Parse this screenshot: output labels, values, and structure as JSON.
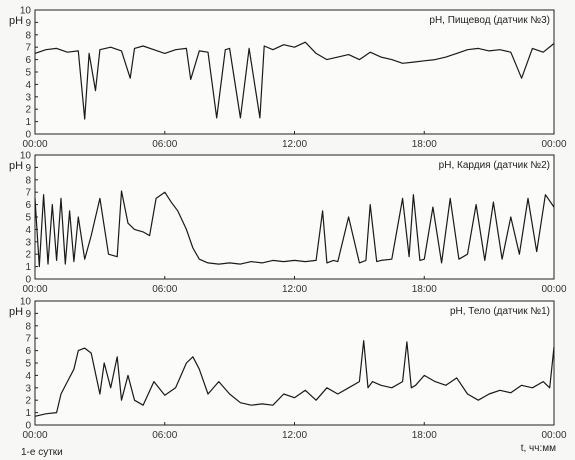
{
  "footer": {
    "day_label": "1-е сутки",
    "axis_label": "t, чч:мм"
  },
  "chart_data": [
    {
      "type": "line",
      "title": "pH, Пищевод (датчик №3)",
      "ylabel": "pH",
      "ylim": [
        0,
        10
      ],
      "yticks": [
        "0",
        "1",
        "2",
        "3",
        "4",
        "5",
        "6",
        "7",
        "8",
        "9",
        "10"
      ],
      "xticks": [
        "00:00",
        "06:00",
        "12:00",
        "18:00",
        "00:00"
      ],
      "xlim_hours": [
        0,
        24
      ],
      "grid": false,
      "series": [
        {
          "x": [
            0,
            0.5,
            1,
            1.5,
            2,
            2.3,
            2.5,
            2.8,
            3,
            3.5,
            4,
            4.4,
            4.6,
            5,
            5.5,
            6,
            6.5,
            7,
            7.2,
            7.6,
            8,
            8.4,
            8.8,
            9,
            9.5,
            9.9,
            10.4,
            10.6,
            11,
            11.5,
            12,
            12.5,
            13,
            13.5,
            14,
            14.5,
            15,
            15.5,
            16,
            16.5,
            17,
            17.5,
            18,
            18.5,
            19,
            19.5,
            20,
            20.5,
            21,
            21.5,
            22,
            22.5,
            23,
            23.5,
            24
          ],
          "y": [
            6.5,
            6.8,
            6.9,
            6.6,
            6.7,
            1.2,
            6.5,
            3.5,
            6.8,
            7.0,
            6.7,
            4.5,
            6.9,
            7.1,
            6.8,
            6.5,
            6.8,
            6.9,
            4.4,
            6.7,
            6.6,
            1.3,
            6.8,
            6.9,
            1.3,
            6.9,
            1.3,
            7.1,
            6.8,
            7.2,
            7.0,
            7.4,
            6.5,
            6.0,
            6.2,
            6.4,
            6.0,
            6.6,
            6.2,
            6.0,
            5.7,
            5.8,
            5.9,
            6.0,
            6.2,
            6.5,
            6.8,
            6.9,
            6.7,
            6.8,
            6.6,
            4.5,
            6.9,
            6.6,
            7.3
          ]
        }
      ]
    },
    {
      "type": "line",
      "title": "pH, Кардия (датчик №2)",
      "ylabel": "pH",
      "ylim": [
        0,
        10
      ],
      "yticks": [
        "0",
        "1",
        "2",
        "3",
        "4",
        "5",
        "6",
        "7",
        "8",
        "9",
        "10"
      ],
      "xticks": [
        "00:00",
        "06:00",
        "12:00",
        "18:00",
        "00:00"
      ],
      "xlim_hours": [
        0,
        24
      ],
      "grid": false,
      "series": [
        {
          "x": [
            0,
            0.2,
            0.4,
            0.6,
            0.8,
            1,
            1.2,
            1.4,
            1.6,
            1.8,
            2,
            2.3,
            2.6,
            3,
            3.4,
            3.8,
            4,
            4.3,
            4.6,
            5,
            5.3,
            5.6,
            6,
            6.3,
            6.6,
            7,
            7.3,
            7.6,
            8,
            8.5,
            9,
            9.5,
            10,
            10.5,
            11,
            11.5,
            12,
            12.5,
            13,
            13.3,
            13.5,
            13.8,
            14,
            14.5,
            15,
            15.3,
            15.5,
            15.8,
            16,
            16.5,
            17,
            17.3,
            17.5,
            17.8,
            18,
            18.4,
            18.8,
            19.2,
            19.6,
            20,
            20.4,
            20.8,
            21.2,
            21.6,
            22,
            22.4,
            22.8,
            23.2,
            23.6,
            24
          ],
          "y": [
            6.5,
            1.0,
            6.8,
            1.2,
            6.0,
            1.5,
            6.5,
            1.2,
            5.5,
            1.4,
            5.0,
            1.6,
            3.5,
            6.5,
            2.0,
            1.8,
            7.1,
            4.5,
            4.0,
            3.8,
            3.5,
            6.5,
            7.0,
            6.2,
            5.5,
            4.0,
            2.5,
            1.6,
            1.3,
            1.2,
            1.3,
            1.2,
            1.4,
            1.3,
            1.5,
            1.4,
            1.5,
            1.4,
            1.5,
            5.5,
            1.3,
            1.5,
            1.4,
            5.0,
            1.3,
            1.5,
            6.0,
            1.4,
            1.5,
            1.6,
            6.5,
            1.8,
            6.8,
            1.5,
            1.6,
            5.8,
            1.3,
            6.5,
            1.6,
            2.0,
            6.0,
            1.5,
            6.2,
            1.6,
            5.0,
            2.0,
            6.5,
            2.2,
            6.8,
            5.8
          ]
        }
      ]
    },
    {
      "type": "line",
      "title": "pH, Тело (датчик №1)",
      "ylabel": "pH",
      "ylim": [
        0,
        10
      ],
      "yticks": [
        "0",
        "1",
        "2",
        "3",
        "4",
        "5",
        "6",
        "7",
        "8",
        "9",
        "10"
      ],
      "xticks": [
        "00:00",
        "06:00",
        "12:00",
        "18:00",
        "00:00"
      ],
      "xlim_hours": [
        0,
        24
      ],
      "grid": false,
      "series": [
        {
          "x": [
            0,
            0.5,
            1,
            1.2,
            1.5,
            1.8,
            2,
            2.3,
            2.6,
            3,
            3.2,
            3.5,
            3.8,
            4,
            4.3,
            4.6,
            5,
            5.5,
            6,
            6.5,
            7,
            7.3,
            7.6,
            8,
            8.5,
            9,
            9.5,
            10,
            10.5,
            11,
            11.5,
            12,
            12.5,
            13,
            13.5,
            14,
            14.5,
            15,
            15.2,
            15.4,
            15.6,
            16,
            16.5,
            17,
            17.2,
            17.4,
            17.6,
            18,
            18.5,
            19,
            19.5,
            20,
            20.5,
            21,
            21.5,
            22,
            22.5,
            23,
            23.5,
            23.8,
            24
          ],
          "y": [
            0.7,
            0.9,
            1.0,
            2.5,
            3.5,
            4.5,
            6.0,
            6.2,
            5.8,
            2.5,
            5.0,
            3.0,
            5.5,
            2.0,
            4.0,
            2.0,
            1.6,
            3.5,
            2.4,
            3.0,
            5.0,
            5.5,
            4.5,
            2.5,
            3.5,
            2.5,
            1.8,
            1.6,
            1.7,
            1.6,
            2.5,
            2.2,
            2.8,
            2.0,
            3.0,
            2.5,
            3.0,
            3.5,
            6.8,
            3.0,
            3.5,
            3.2,
            3.0,
            3.5,
            6.7,
            3.0,
            3.2,
            4.0,
            3.5,
            3.2,
            3.8,
            2.5,
            2.0,
            2.5,
            2.8,
            2.6,
            3.2,
            3.0,
            3.5,
            3.0,
            6.3
          ]
        }
      ]
    }
  ]
}
